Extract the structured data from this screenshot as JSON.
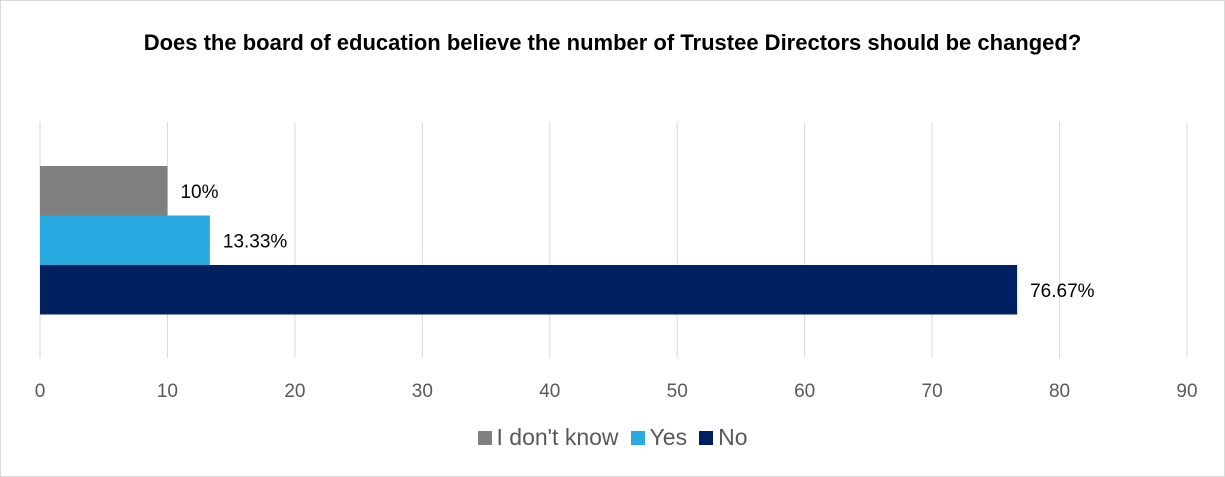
{
  "chart_data": {
    "type": "bar",
    "orientation": "horizontal",
    "title": "Does the board of education believe the number of Trustee Directors should be changed?",
    "xlabel": "",
    "ylabel": "",
    "xlim": [
      0,
      90
    ],
    "x_ticks": [
      0,
      10,
      20,
      30,
      40,
      50,
      60,
      70,
      80,
      90
    ],
    "grid": "vertical",
    "legend_position": "bottom",
    "series": [
      {
        "name": "I don't know",
        "value": 10,
        "label": "10%",
        "color": "#7f7f7f"
      },
      {
        "name": "Yes",
        "value": 13.33,
        "label": "13.33%",
        "color": "#29abe2"
      },
      {
        "name": "No",
        "value": 76.67,
        "label": "76.67%",
        "color": "#002060"
      }
    ]
  }
}
